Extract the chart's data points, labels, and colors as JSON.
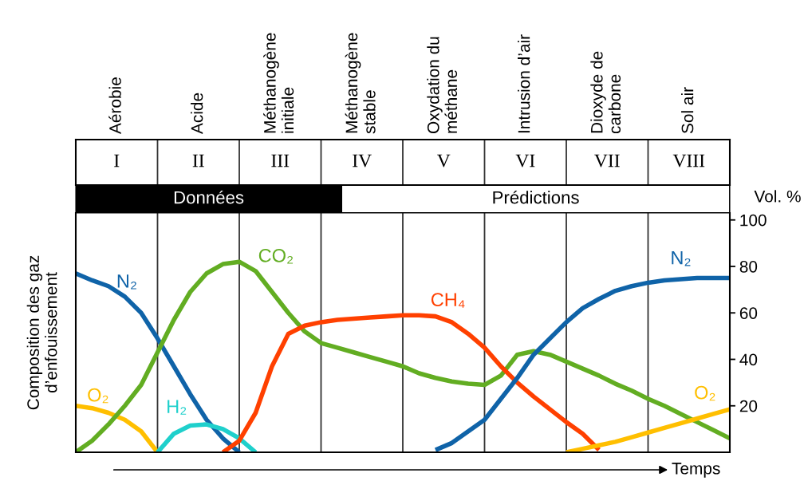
{
  "chart_data": {
    "type": "line",
    "xlabel": "Temps",
    "ylabel": "Composition des gaz\nd’enfouissement",
    "annotations": [
      "Aérobie",
      "Acide",
      "Méthanogène\ninitiale",
      "Méthanogène\nstable",
      "Oxydation du\nméthane",
      "Intrusion d’air",
      "Dioxyde de\ncarbone",
      "Sol air",
      "I",
      "II",
      "III",
      "IV",
      "V",
      "VI",
      "VII",
      "VIII",
      "Données",
      "Prédictions",
      "Vol. %"
    ],
    "categories": [
      null,
      null,
      null,
      null,
      null,
      null,
      null,
      null,
      null,
      null,
      null,
      null,
      null,
      null,
      null,
      null,
      null,
      null,
      null,
      null,
      null,
      null,
      null,
      null,
      null,
      null,
      null,
      null,
      null,
      null,
      null,
      null,
      null,
      null,
      null,
      null,
      null,
      null,
      null,
      null,
      null
    ],
    "ylim": [
      0,
      103
    ],
    "yticks": [
      20,
      40,
      60,
      80,
      100
    ],
    "grid": "x",
    "legend": false,
    "marker": "none",
    "line_style": "solid",
    "series": [
      {
        "name": "N₂",
        "color": "#0f63a8",
        "values": [
          77,
          74,
          71.5,
          67,
          60,
          49,
          37,
          25,
          14,
          6,
          0,
          null,
          null,
          null,
          null,
          null,
          null,
          null,
          null,
          null,
          null,
          null,
          null,
          null,
          null,
          null,
          null,
          null,
          null,
          null,
          null,
          null,
          null,
          null,
          null,
          null,
          null,
          null,
          null,
          null,
          null
        ]
      },
      {
        "name": "O₂",
        "color": "#ffbf00",
        "values": [
          20,
          19,
          17,
          14,
          9,
          0,
          null,
          null,
          null,
          null,
          null,
          null,
          null,
          null,
          null,
          null,
          null,
          null,
          null,
          null,
          null,
          null,
          null,
          null,
          null,
          null,
          null,
          null,
          null,
          null,
          null,
          null,
          null,
          null,
          null,
          null,
          null,
          null,
          null,
          null,
          null
        ]
      },
      {
        "name": "H₂",
        "color": "#1fd0cc",
        "values": [
          null,
          null,
          null,
          null,
          null,
          0,
          8,
          11.5,
          12,
          10,
          6,
          0,
          null,
          null,
          null,
          null,
          null,
          null,
          null,
          null,
          null,
          null,
          null,
          null,
          null,
          null,
          null,
          null,
          null,
          null,
          null,
          null,
          null,
          null,
          null,
          null,
          null,
          null,
          null,
          null,
          null
        ]
      },
      {
        "name": "CO₂",
        "color": "#62ad22",
        "values": [
          0,
          5,
          12,
          20,
          29,
          43,
          57,
          69,
          77,
          81,
          82,
          78,
          69,
          60,
          52,
          47,
          45,
          43,
          41,
          39,
          37,
          34,
          32,
          30.5,
          29.5,
          29,
          33,
          42,
          43.5,
          42,
          39,
          36,
          33,
          29.5,
          26.5,
          23,
          20,
          16.5,
          13,
          9.5,
          6
        ]
      },
      {
        "name": "CH₄",
        "color": "#ff4000",
        "values": [
          null,
          null,
          null,
          null,
          null,
          null,
          null,
          null,
          null,
          0,
          5,
          17,
          37,
          51,
          54.5,
          56,
          57,
          57.5,
          58,
          58.5,
          59,
          59,
          58.5,
          56,
          51,
          45,
          37,
          30,
          24,
          18.5,
          13,
          8,
          1,
          null,
          null,
          null,
          null,
          null,
          null,
          null,
          null
        ]
      },
      {
        "name": "N₂",
        "color": "#0f63a8",
        "values": [
          null,
          null,
          null,
          null,
          null,
          null,
          null,
          null,
          null,
          null,
          null,
          null,
          null,
          null,
          null,
          null,
          null,
          null,
          null,
          null,
          null,
          null,
          1,
          4,
          9,
          14,
          23,
          32,
          42,
          49,
          56,
          62,
          66,
          69.5,
          71.5,
          73,
          74,
          74.5,
          75,
          75,
          75
        ]
      },
      {
        "name": "O₂",
        "color": "#ffbf00",
        "values": [
          null,
          null,
          null,
          null,
          null,
          null,
          null,
          null,
          null,
          null,
          null,
          null,
          null,
          null,
          null,
          null,
          null,
          null,
          null,
          null,
          null,
          null,
          null,
          null,
          null,
          null,
          null,
          null,
          null,
          null,
          0,
          1.5,
          3,
          4.5,
          6.5,
          8.5,
          10.5,
          12.5,
          14.5,
          16.5,
          18.5
        ]
      }
    ]
  }
}
